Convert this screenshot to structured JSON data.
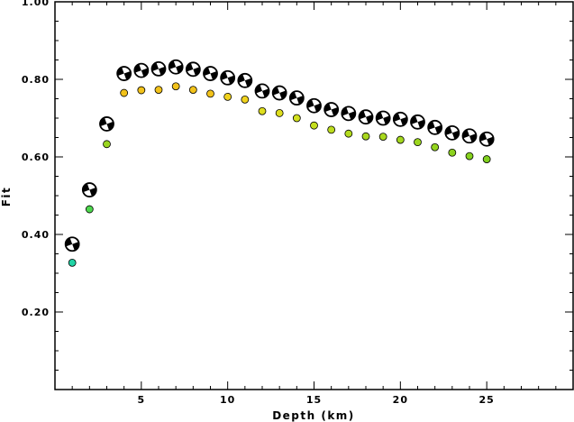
{
  "chart_data": {
    "type": "scatter",
    "xlabel": "Depth (km)",
    "ylabel": "Fit",
    "xlim": [
      0,
      30
    ],
    "ylim": [
      0,
      1.0
    ],
    "x_ticks": [
      5,
      10,
      15,
      20,
      25
    ],
    "y_ticks": [
      0.2,
      0.4,
      0.6,
      0.8,
      1.0
    ],
    "x_tick_labels": [
      "5",
      "10",
      "15",
      "20",
      "25"
    ],
    "y_tick_labels": [
      "0.20",
      "0.40",
      "0.60",
      "0.80",
      "1.00"
    ],
    "grid": false,
    "series": [
      {
        "marker": "focal-mechanism",
        "x": [
          1,
          2,
          3,
          4,
          5,
          6,
          7,
          8,
          9,
          10,
          11,
          12,
          13,
          14,
          15,
          16,
          17,
          18,
          19,
          20,
          21,
          22,
          23,
          24,
          25
        ],
        "values": [
          0.375,
          0.515,
          0.685,
          0.815,
          0.823,
          0.827,
          0.832,
          0.826,
          0.815,
          0.804,
          0.797,
          0.77,
          0.765,
          0.752,
          0.732,
          0.722,
          0.712,
          0.703,
          0.7,
          0.697,
          0.69,
          0.676,
          0.662,
          0.654,
          0.646
        ]
      },
      {
        "marker": "circle",
        "x": [
          1,
          2,
          3,
          4,
          5,
          6,
          7,
          8,
          9,
          10,
          11,
          12,
          13,
          14,
          15,
          16,
          17,
          18,
          19,
          20,
          21,
          22,
          23,
          24,
          25
        ],
        "values": [
          0.327,
          0.465,
          0.633,
          0.765,
          0.772,
          0.773,
          0.782,
          0.773,
          0.763,
          0.755,
          0.748,
          0.718,
          0.713,
          0.7,
          0.681,
          0.67,
          0.66,
          0.653,
          0.652,
          0.644,
          0.638,
          0.625,
          0.611,
          0.602,
          0.594
        ],
        "colors": [
          "#22d3a5",
          "#4ed84e",
          "#9ad620",
          "#f2c21a",
          "#f2c21a",
          "#f2c21a",
          "#f2c21a",
          "#f2c21a",
          "#f2c21a",
          "#f0d21e",
          "#f0d21e",
          "#dede1e",
          "#dede1e",
          "#d2e01e",
          "#c4de1e",
          "#bcdc1e",
          "#b4dc1e",
          "#aad81e",
          "#a8d81e",
          "#a4d81e",
          "#9cd61e",
          "#94d41e",
          "#8cd21e",
          "#86d21e",
          "#80d01e"
        ]
      }
    ]
  }
}
